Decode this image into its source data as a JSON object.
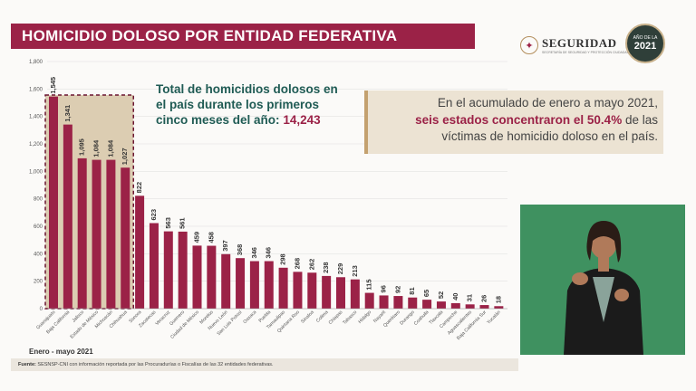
{
  "header": {
    "title": "HOMICIDIO DOLOSO POR ENTIDAD FEDERATIVA",
    "logo_name": "SEGURIDAD",
    "logo_sub": "SECRETARÍA DE SEGURIDAD Y PROTECCIÓN CIUDADANA",
    "badge_year": "2021",
    "badge_label": "AÑO DE LA"
  },
  "summary": {
    "total_line": "Total de homicidios dolosos en el país durante los primeros cinco meses del año:",
    "total_value": "14,243"
  },
  "highlight": {
    "pre": "En el acumulado de enero a mayo 2021,",
    "strong": "seis estados concentraron el 50.4%",
    "post": "de las víctimas de homicidio doloso en el país."
  },
  "date_label": "Enero - mayo 2021",
  "footer": {
    "label": "Fuente:",
    "text": "SESNSP-CNI con información reportada por las Procuradurías o Fiscalías de las 32 entidades federativas."
  },
  "colors": {
    "bar": "#9b2247",
    "highlight_fill": "#dccdb2",
    "highlight_border": "#6b1530",
    "grid": "#dddddd",
    "axis_text": "#555555"
  },
  "chart_data": {
    "type": "bar",
    "title": "HOMICIDIO DOLOSO POR ENTIDAD FEDERATIVA",
    "xlabel": "",
    "ylabel": "",
    "ylim": [
      0,
      1800
    ],
    "yticks": [
      0,
      200,
      400,
      600,
      800,
      1000,
      1200,
      1400,
      1600,
      1800
    ],
    "ytick_labels": [
      "0",
      "200",
      "400",
      "600",
      "800",
      "1,000",
      "1,200",
      "1,400",
      "1,600",
      "1,800"
    ],
    "grid": true,
    "highlighted_count": 6,
    "categories": [
      "Guanajuato",
      "Baja California",
      "Jalisco",
      "Estado de México",
      "Michoacán",
      "Chihuahua",
      "Sonora",
      "Zacatecas",
      "Veracruz",
      "Guerrero",
      "Ciudad de México",
      "Morelos",
      "Nuevo León",
      "San Luis Potosí",
      "Oaxaca",
      "Puebla",
      "Tamaulipas",
      "Quintana Roo",
      "Sinaloa",
      "Colima",
      "Chiapas",
      "Tabasco",
      "Hidalgo",
      "Nayarit",
      "Querétaro",
      "Durango",
      "Coahuila",
      "Tlaxcala",
      "Campeche",
      "Aguascalientes",
      "Baja California Sur",
      "Yucatán"
    ],
    "values": [
      1545,
      1341,
      1095,
      1084,
      1084,
      1027,
      822,
      623,
      563,
      561,
      459,
      458,
      397,
      368,
      346,
      346,
      298,
      268,
      262,
      238,
      229,
      213,
      115,
      96,
      92,
      81,
      65,
      52,
      40,
      31,
      26,
      18
    ],
    "value_labels": [
      "1,545",
      "1,341",
      "1,095",
      "1,084",
      "1,084",
      "1,027",
      "822",
      "623",
      "563",
      "561",
      "459",
      "458",
      "397",
      "368",
      "346",
      "346",
      "298",
      "268",
      "262",
      "238",
      "229",
      "213",
      "115",
      "96",
      "92",
      "81",
      "65",
      "52",
      "40",
      "31",
      "26",
      "18"
    ]
  }
}
